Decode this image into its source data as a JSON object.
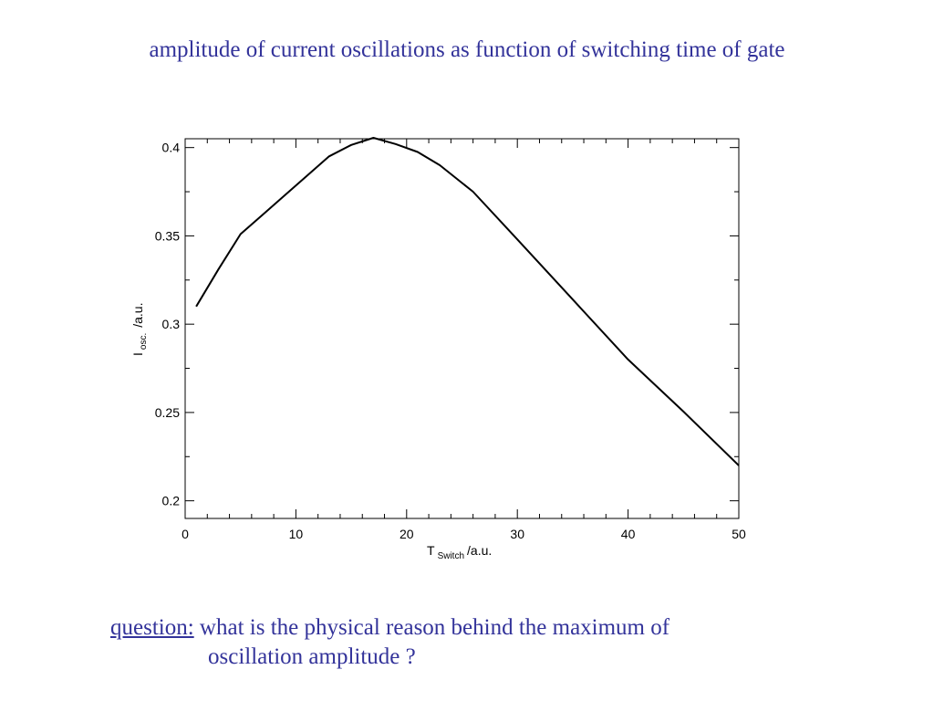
{
  "slide": {
    "title": "amplitude of current oscillations as function of switching time of gate",
    "text_color": "#33339a"
  },
  "question": {
    "label": "question:",
    "line1": "what is the physical reason behind the maximum of",
    "line2": "oscillation amplitude ?"
  },
  "chart_data": {
    "type": "line",
    "xlabel": {
      "main": "T",
      "sub": "Switch",
      "suffix": "/a.u."
    },
    "ylabel": {
      "main": "I",
      "sub": "osc.",
      "suffix": "/a.u."
    },
    "xlim": [
      0,
      50
    ],
    "ylim": [
      0.19,
      0.405
    ],
    "x_ticks": [
      0,
      10,
      20,
      30,
      40,
      50
    ],
    "y_ticks": [
      0.2,
      0.25,
      0.3,
      0.35,
      0.4
    ],
    "x_tick_labels": [
      "0",
      "10",
      "20",
      "30",
      "40",
      "50"
    ],
    "y_tick_labels": [
      "0.2",
      "0.25",
      "0.3",
      "0.35",
      "0.4"
    ],
    "grid": false,
    "line_color": "#000000",
    "series": [
      {
        "x": [
          1,
          3,
          5,
          7,
          9,
          11,
          13,
          15,
          17,
          19,
          21,
          23,
          26,
          30,
          35,
          40,
          45,
          50
        ],
        "y": [
          0.31,
          0.331,
          0.351,
          0.362,
          0.373,
          0.384,
          0.395,
          0.4015,
          0.4055,
          0.402,
          0.3975,
          0.39,
          0.375,
          0.348,
          0.314,
          0.28,
          0.2505,
          0.22
        ]
      }
    ]
  }
}
